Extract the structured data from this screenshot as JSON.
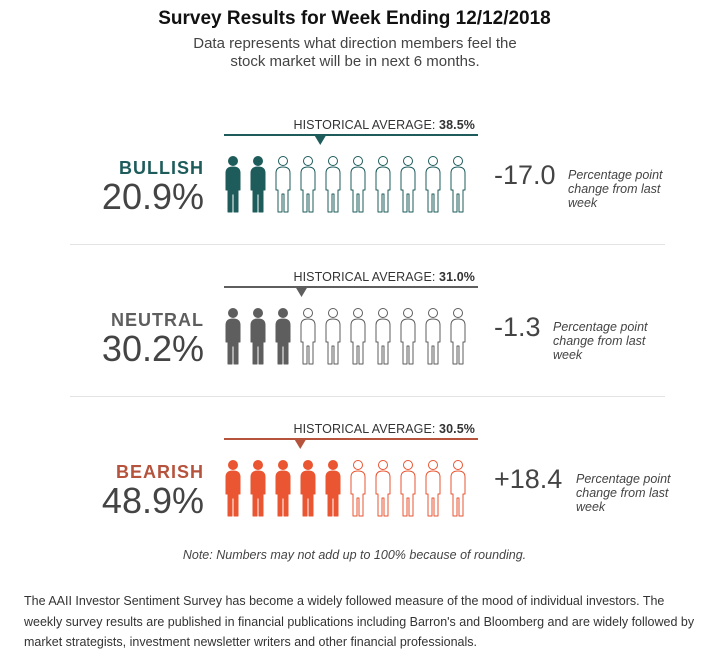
{
  "title": "Survey Results for Week Ending 12/12/2018",
  "subtitle": "Data represents what direction members feel the stock market will be in next 6 months.",
  "chart_data": {
    "type": "pictograph",
    "units_per_row": 10,
    "hist_prefix": "HISTORICAL AVERAGE: ",
    "change_note": "Percentage point change from last week",
    "series": [
      {
        "name": "BULLISH",
        "value": 20.9,
        "value_label": "20.9%",
        "historical_average": 38.5,
        "historical_label": "38.5%",
        "change": -17.0,
        "change_label": "-17.0",
        "filled_icons": 2,
        "color": "#1e5c5c"
      },
      {
        "name": "NEUTRAL",
        "value": 30.2,
        "value_label": "30.2%",
        "historical_average": 31.0,
        "historical_label": "31.0%",
        "change": -1.3,
        "change_label": "-1.3",
        "filled_icons": 3,
        "color": "#5e5e5e"
      },
      {
        "name": "BEARISH",
        "value": 48.9,
        "value_label": "48.9%",
        "historical_average": 30.5,
        "historical_label": "30.5%",
        "change": 18.4,
        "change_label": "+18.4",
        "filled_icons": 5,
        "color": "#ea5532",
        "label_color": "#b5533d",
        "hist_color": "#b5533d"
      }
    ]
  },
  "note": "Note: Numbers may not add up to 100% because of rounding.",
  "footer": "The AAII Investor Sentiment Survey has become a widely followed measure of the mood of individual investors. The weekly survey results are published in financial publications including Barron's and Bloomberg and are widely followed by market strategists, investment newsletter writers and other financial professionals."
}
